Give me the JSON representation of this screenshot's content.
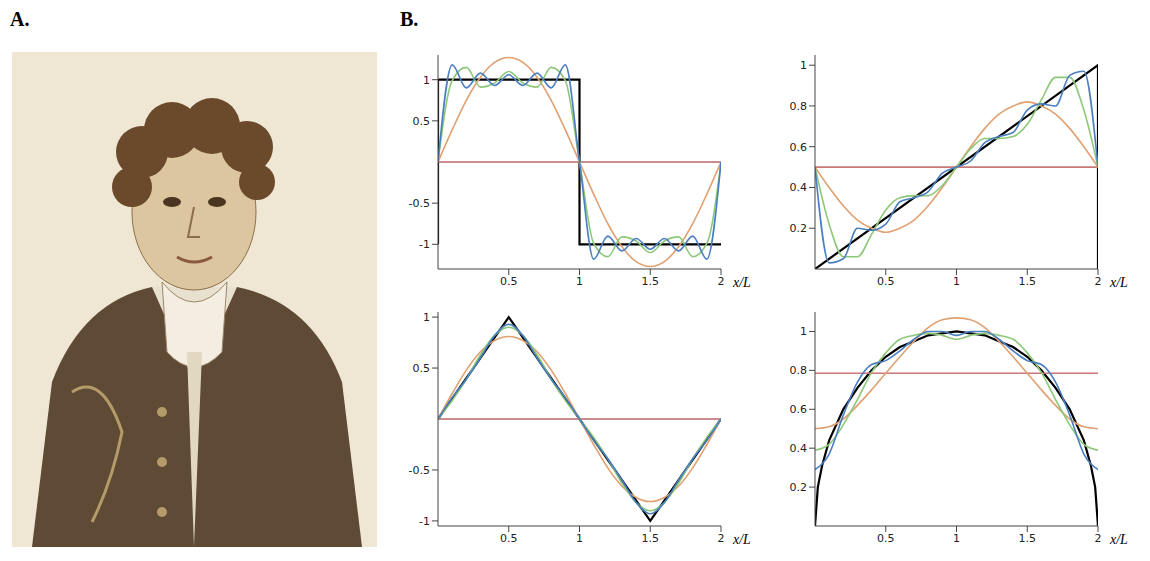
{
  "panel_labels": [
    "A.",
    "B."
  ],
  "chart_data": [
    {
      "type": "line",
      "grid": false,
      "x_label": "x/L",
      "xlim": [
        0,
        2
      ],
      "ylim": [
        -1.3,
        1.3
      ],
      "xticks": [
        0.5,
        1,
        1.5,
        2
      ],
      "yticks": [
        -1,
        -0.5,
        0.5,
        1
      ],
      "x": [
        0,
        0.1,
        0.2,
        0.3,
        0.4,
        0.5,
        0.6,
        0.7,
        0.8,
        0.9,
        1,
        1.1,
        1.2,
        1.3,
        1.4,
        1.5,
        1.6,
        1.7,
        1.8,
        1.9,
        2
      ],
      "series": [
        {
          "color": "#000000",
          "x": [
            0,
            0,
            1,
            1,
            2
          ],
          "values": [
            -1,
            1,
            1,
            -1,
            -1
          ]
        },
        {
          "color": "#c87878",
          "values": [
            0,
            0,
            0,
            0,
            0,
            0,
            0,
            0,
            0,
            0,
            0,
            0,
            0,
            0,
            0,
            0,
            0,
            0,
            0,
            0,
            0
          ]
        },
        {
          "color": "#e0a070",
          "values": [
            0,
            0.39,
            0.75,
            1.03,
            1.21,
            1.27,
            1.21,
            1.03,
            0.75,
            0.39,
            0,
            -0.39,
            -0.75,
            -1.03,
            -1.21,
            -1.27,
            -1.21,
            -1.03,
            -0.75,
            -0.39,
            0
          ]
        },
        {
          "color": "#8cc878",
          "values": [
            0,
            0.99,
            1.15,
            0.91,
            0.96,
            1.1,
            0.96,
            0.91,
            1.15,
            0.99,
            0,
            -0.99,
            -1.15,
            -0.91,
            -0.96,
            -1.1,
            -0.96,
            -0.91,
            -1.15,
            -0.99,
            0
          ]
        },
        {
          "color": "#4a7fc0",
          "values": [
            0,
            1.18,
            0.9,
            1.08,
            0.93,
            1.06,
            0.93,
            1.08,
            0.9,
            1.18,
            0,
            -1.18,
            -0.9,
            -1.08,
            -0.93,
            -1.06,
            -0.93,
            -1.08,
            -0.9,
            -1.18,
            0
          ]
        }
      ]
    },
    {
      "type": "line",
      "grid": false,
      "x_label": "x/L",
      "xlim": [
        0,
        2
      ],
      "ylim": [
        0,
        1.05
      ],
      "xticks": [
        0.5,
        1,
        1.5,
        2
      ],
      "yticks": [
        0.2,
        0.4,
        0.6,
        0.8,
        1
      ],
      "x": [
        0,
        0.1,
        0.2,
        0.3,
        0.4,
        0.5,
        0.6,
        0.7,
        0.8,
        0.9,
        1,
        1.1,
        1.2,
        1.3,
        1.4,
        1.5,
        1.6,
        1.7,
        1.8,
        1.9,
        2
      ],
      "series": [
        {
          "color": "#000000",
          "x": [
            0,
            2,
            2
          ],
          "values": [
            0,
            1,
            0
          ]
        },
        {
          "color": "#c87878",
          "values": [
            0.5,
            0.5,
            0.5,
            0.5,
            0.5,
            0.5,
            0.5,
            0.5,
            0.5,
            0.5,
            0.5,
            0.5,
            0.5,
            0.5,
            0.5,
            0.5,
            0.5,
            0.5,
            0.5,
            0.5,
            0.5
          ]
        },
        {
          "color": "#e0a070",
          "values": [
            0.5,
            0.4,
            0.31,
            0.24,
            0.2,
            0.18,
            0.2,
            0.24,
            0.31,
            0.4,
            0.5,
            0.6,
            0.69,
            0.76,
            0.8,
            0.82,
            0.8,
            0.76,
            0.69,
            0.6,
            0.5
          ]
        },
        {
          "color": "#8cc878",
          "values": [
            0.5,
            0.22,
            0.06,
            0.06,
            0.17,
            0.29,
            0.35,
            0.36,
            0.36,
            0.41,
            0.5,
            0.59,
            0.64,
            0.64,
            0.65,
            0.71,
            0.83,
            0.94,
            0.94,
            0.78,
            0.5
          ]
        },
        {
          "color": "#4a7fc0",
          "values": [
            0.5,
            0.03,
            0.05,
            0.2,
            0.19,
            0.22,
            0.33,
            0.35,
            0.38,
            0.47,
            0.5,
            0.53,
            0.62,
            0.65,
            0.67,
            0.78,
            0.81,
            0.8,
            0.95,
            0.97,
            0.5
          ]
        }
      ]
    },
    {
      "type": "line",
      "grid": false,
      "x_label": "x/L",
      "xlim": [
        0,
        2
      ],
      "ylim": [
        -1.05,
        1.05
      ],
      "xticks": [
        0.5,
        1,
        1.5,
        2
      ],
      "yticks": [
        -1,
        -0.5,
        0.5,
        1
      ],
      "x": [
        0,
        0.1,
        0.2,
        0.3,
        0.4,
        0.5,
        0.6,
        0.7,
        0.8,
        0.9,
        1,
        1.1,
        1.2,
        1.3,
        1.4,
        1.5,
        1.6,
        1.7,
        1.8,
        1.9,
        2
      ],
      "series": [
        {
          "color": "#000000",
          "x": [
            0,
            0.5,
            1,
            1.5,
            2
          ],
          "values": [
            0,
            1,
            0,
            -1,
            0
          ]
        },
        {
          "color": "#c87878",
          "values": [
            0,
            0,
            0,
            0,
            0,
            0,
            0,
            0,
            0,
            0,
            0,
            0,
            0,
            0,
            0,
            0,
            0,
            0,
            0,
            0,
            0
          ]
        },
        {
          "color": "#e0a070",
          "values": [
            0,
            0.25,
            0.48,
            0.66,
            0.77,
            0.81,
            0.77,
            0.66,
            0.48,
            0.25,
            0,
            -0.25,
            -0.48,
            -0.66,
            -0.77,
            -0.81,
            -0.77,
            -0.66,
            -0.48,
            -0.25,
            0
          ]
        },
        {
          "color": "#8cc878",
          "values": [
            0,
            0.18,
            0.39,
            0.63,
            0.82,
            0.9,
            0.82,
            0.63,
            0.39,
            0.18,
            0,
            -0.18,
            -0.39,
            -0.63,
            -0.82,
            -0.9,
            -0.82,
            -0.63,
            -0.39,
            -0.18,
            0
          ]
        },
        {
          "color": "#4a7fc0",
          "values": [
            0,
            0.21,
            0.39,
            0.6,
            0.82,
            0.93,
            0.82,
            0.6,
            0.39,
            0.21,
            0,
            -0.21,
            -0.39,
            -0.6,
            -0.82,
            -0.93,
            -0.82,
            -0.6,
            -0.39,
            -0.21,
            0
          ]
        }
      ]
    },
    {
      "type": "line",
      "grid": false,
      "x_label": "x/L",
      "xlim": [
        0,
        2
      ],
      "ylim": [
        0,
        1.1
      ],
      "xticks": [
        0.5,
        1,
        1.5,
        2
      ],
      "yticks": [
        0.2,
        0.4,
        0.6,
        0.8,
        1
      ],
      "x": [
        0,
        0.1,
        0.2,
        0.3,
        0.4,
        0.5,
        0.6,
        0.7,
        0.8,
        0.9,
        1,
        1.1,
        1.2,
        1.3,
        1.4,
        1.5,
        1.6,
        1.7,
        1.8,
        1.9,
        2
      ],
      "series": [
        {
          "color": "#000000",
          "x": [
            0,
            0.02,
            0.05,
            0.1,
            0.2,
            0.3,
            0.4,
            0.5,
            0.6,
            0.7,
            0.8,
            0.9,
            1,
            1.1,
            1.2,
            1.3,
            1.4,
            1.5,
            1.6,
            1.7,
            1.8,
            1.9,
            1.95,
            1.98,
            2
          ],
          "values": [
            0,
            0.2,
            0.31,
            0.44,
            0.6,
            0.71,
            0.8,
            0.87,
            0.92,
            0.95,
            0.98,
            0.99,
            1,
            0.99,
            0.98,
            0.95,
            0.92,
            0.87,
            0.8,
            0.71,
            0.6,
            0.44,
            0.31,
            0.2,
            0
          ]
        },
        {
          "color": "#c87878",
          "values": [
            0.785,
            0.785,
            0.785,
            0.785,
            0.785,
            0.785,
            0.785,
            0.785,
            0.785,
            0.785,
            0.785,
            0.785,
            0.785,
            0.785,
            0.785,
            0.785,
            0.785,
            0.785,
            0.785,
            0.785,
            0.785
          ]
        },
        {
          "color": "#e0a070",
          "values": [
            0.5,
            0.51,
            0.55,
            0.62,
            0.7,
            0.785,
            0.87,
            0.95,
            1.02,
            1.06,
            1.07,
            1.06,
            1.02,
            0.95,
            0.87,
            0.785,
            0.7,
            0.62,
            0.55,
            0.51,
            0.5
          ]
        },
        {
          "color": "#8cc878",
          "values": [
            0.39,
            0.42,
            0.52,
            0.65,
            0.79,
            0.89,
            0.96,
            0.98,
            0.99,
            0.98,
            0.96,
            0.98,
            0.99,
            0.98,
            0.96,
            0.89,
            0.79,
            0.65,
            0.52,
            0.42,
            0.39
          ]
        },
        {
          "color": "#4a7fc0",
          "values": [
            0.29,
            0.37,
            0.57,
            0.74,
            0.83,
            0.85,
            0.9,
            0.96,
            1,
            1,
            0.98,
            1,
            1,
            0.96,
            0.9,
            0.85,
            0.83,
            0.74,
            0.57,
            0.37,
            0.29
          ]
        }
      ]
    }
  ]
}
